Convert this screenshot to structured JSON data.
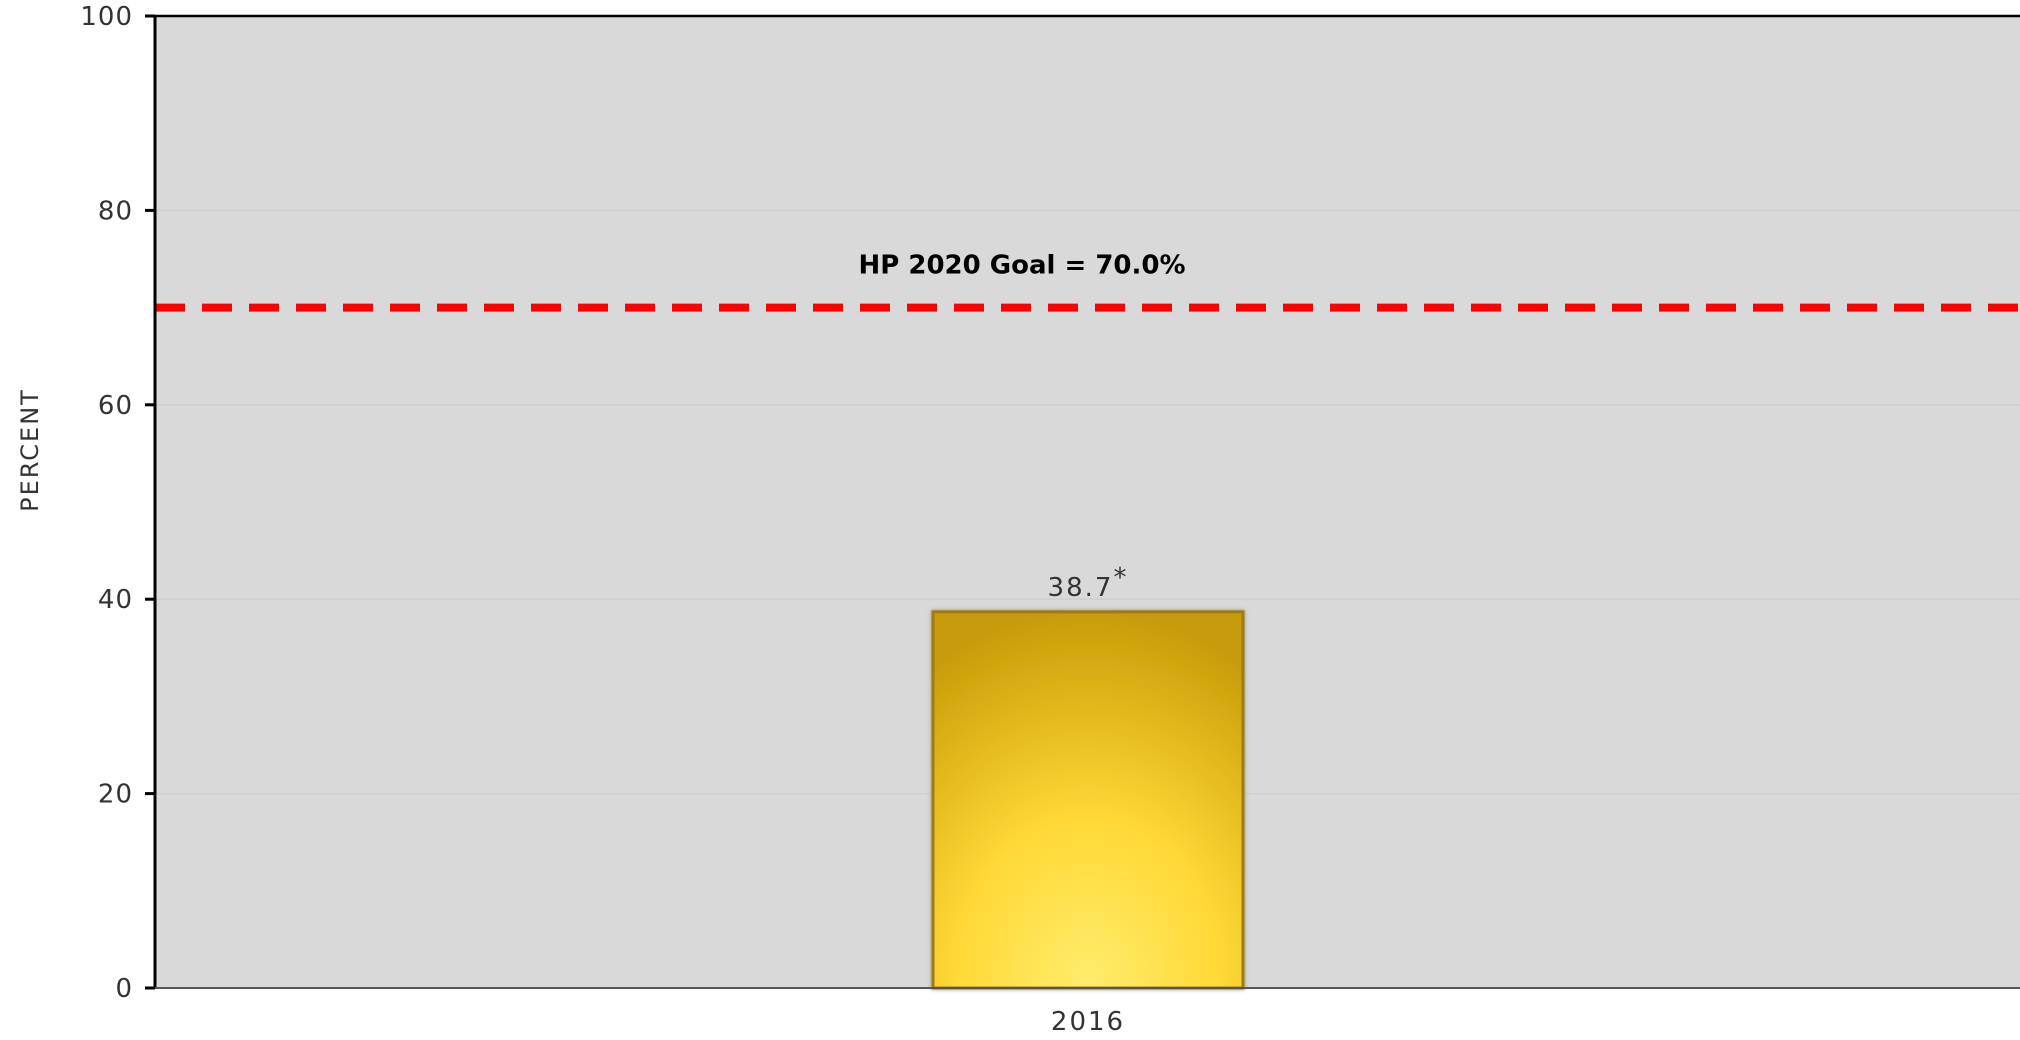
{
  "colors": {
    "plot_background": "#d9d9d9",
    "bar_fill_light": "#ffec6e",
    "bar_fill_mid": "#ffd936",
    "bar_fill_dark": "#c89b08",
    "bar_edge": "#9c7c12",
    "goal_line": "#ff0000",
    "axis": "#000000",
    "gridline": "#cfcfcf",
    "text": "#333333"
  },
  "chart_data": {
    "type": "bar",
    "title": "",
    "xlabel": "",
    "ylabel": "PERCENT",
    "ylim": [
      0,
      100
    ],
    "yticks": [
      0,
      20,
      40,
      60,
      80,
      100
    ],
    "grid": true,
    "categories": [
      "2016"
    ],
    "series": [
      {
        "values": [
          38.7
        ],
        "data_labels": [
          "38.7"
        ],
        "label_marker": "*"
      }
    ],
    "reference_line": {
      "value": 70.0,
      "label": "HP 2020 Goal = 70.0%",
      "style": "dashed"
    }
  }
}
